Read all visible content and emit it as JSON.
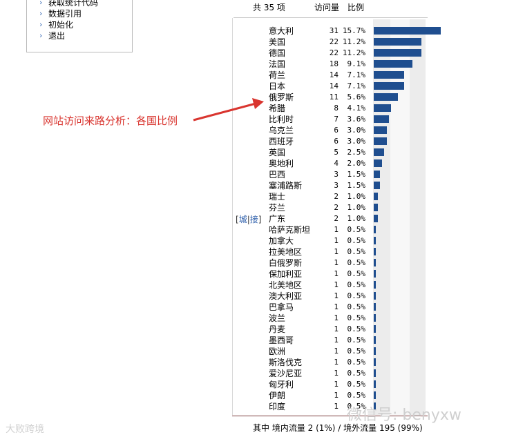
{
  "menu": {
    "items": [
      "获取统计代码",
      "数据引用",
      "初始化",
      "退出"
    ]
  },
  "table": {
    "total_label": "共 35 项",
    "col_visits": "访问量",
    "col_ratio": "比例",
    "city_open": "[",
    "city_label": "城",
    "city_sep": "|",
    "city_label2": "接",
    "city_close": "]",
    "rows": [
      {
        "name": "意大利",
        "count": "31",
        "pct": "15.7%",
        "value": 15.7
      },
      {
        "name": "美国",
        "count": "22",
        "pct": "11.2%",
        "value": 11.2
      },
      {
        "name": "德国",
        "count": "22",
        "pct": "11.2%",
        "value": 11.2
      },
      {
        "name": "法国",
        "count": "18",
        "pct": "9.1%",
        "value": 9.1
      },
      {
        "name": "荷兰",
        "count": "14",
        "pct": "7.1%",
        "value": 7.1
      },
      {
        "name": "日本",
        "count": "14",
        "pct": "7.1%",
        "value": 7.1
      },
      {
        "name": "俄罗斯",
        "count": "11",
        "pct": "5.6%",
        "value": 5.6
      },
      {
        "name": "希腊",
        "count": "8",
        "pct": "4.1%",
        "value": 4.1
      },
      {
        "name": "比利时",
        "count": "7",
        "pct": "3.6%",
        "value": 3.6
      },
      {
        "name": "乌克兰",
        "count": "6",
        "pct": "3.0%",
        "value": 3.0
      },
      {
        "name": "西班牙",
        "count": "6",
        "pct": "3.0%",
        "value": 3.0
      },
      {
        "name": "英国",
        "count": "5",
        "pct": "2.5%",
        "value": 2.5
      },
      {
        "name": "奥地利",
        "count": "4",
        "pct": "2.0%",
        "value": 2.0
      },
      {
        "name": "巴西",
        "count": "3",
        "pct": "1.5%",
        "value": 1.5
      },
      {
        "name": "塞浦路斯",
        "count": "3",
        "pct": "1.5%",
        "value": 1.5
      },
      {
        "name": "瑞士",
        "count": "2",
        "pct": "1.0%",
        "value": 1.0
      },
      {
        "name": "芬兰",
        "count": "2",
        "pct": "1.0%",
        "value": 1.0
      },
      {
        "name": "广东",
        "count": "2",
        "pct": "1.0%",
        "value": 1.0
      },
      {
        "name": "哈萨克斯坦",
        "count": "1",
        "pct": "0.5%",
        "value": 0.5
      },
      {
        "name": "加拿大",
        "count": "1",
        "pct": "0.5%",
        "value": 0.5
      },
      {
        "name": "拉美地区",
        "count": "1",
        "pct": "0.5%",
        "value": 0.5
      },
      {
        "name": "白俄罗斯",
        "count": "1",
        "pct": "0.5%",
        "value": 0.5
      },
      {
        "name": "保加利亚",
        "count": "1",
        "pct": "0.5%",
        "value": 0.5
      },
      {
        "name": "北美地区",
        "count": "1",
        "pct": "0.5%",
        "value": 0.5
      },
      {
        "name": "澳大利亚",
        "count": "1",
        "pct": "0.5%",
        "value": 0.5
      },
      {
        "name": "巴拿马",
        "count": "1",
        "pct": "0.5%",
        "value": 0.5
      },
      {
        "name": "波兰",
        "count": "1",
        "pct": "0.5%",
        "value": 0.5
      },
      {
        "name": "丹麦",
        "count": "1",
        "pct": "0.5%",
        "value": 0.5
      },
      {
        "name": "墨西哥",
        "count": "1",
        "pct": "0.5%",
        "value": 0.5
      },
      {
        "name": "欧洲",
        "count": "1",
        "pct": "0.5%",
        "value": 0.5
      },
      {
        "name": "斯洛伐克",
        "count": "1",
        "pct": "0.5%",
        "value": 0.5
      },
      {
        "name": "爱沙尼亚",
        "count": "1",
        "pct": "0.5%",
        "value": 0.5
      },
      {
        "name": "匈牙利",
        "count": "1",
        "pct": "0.5%",
        "value": 0.5
      },
      {
        "name": "伊朗",
        "count": "1",
        "pct": "0.5%",
        "value": 0.5
      },
      {
        "name": "印度",
        "count": "1",
        "pct": "0.5%",
        "value": 0.5
      }
    ],
    "bar_color": "#1f4e8f",
    "footer": "其中 境内流量 2 (1%) / 境外流量 195 (99%)"
  },
  "annotation": {
    "text": "网站访问来路分析：各国比例",
    "color": "#d9352f"
  },
  "watermark": {
    "right": "微信号: benyxw",
    "left": "大败跨境"
  }
}
